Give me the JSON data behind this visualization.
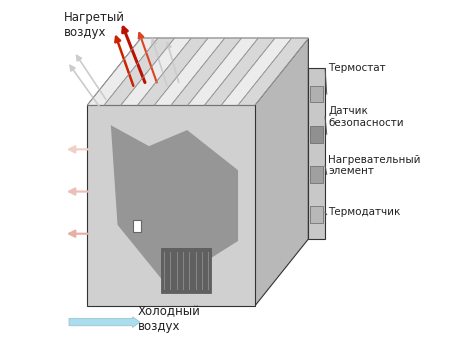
{
  "title": "",
  "bg_color": "#ffffff",
  "labels": {
    "hot_air": "Нагретый\nвоздух",
    "cold_air": "Холодный\nвоздух",
    "thermostat": "Термостат",
    "safety_sensor": "Датчик\nбезопасности",
    "heating_element": "Нагревательный\nэлемент",
    "temp_sensor": "Термодатчик"
  },
  "box_face": "#d0d0d0",
  "box_top": "#e8e8e8",
  "box_side": "#b8b8b8",
  "louver_color": "#e0e0e0",
  "louver_stroke": "#888888",
  "internal_dark": "#808080",
  "internal_darker": "#606060",
  "hot_arrow_red": "#cc2200",
  "cold_arrow_blue": "#aaddee",
  "line_color": "#333333",
  "text_color": "#222222"
}
